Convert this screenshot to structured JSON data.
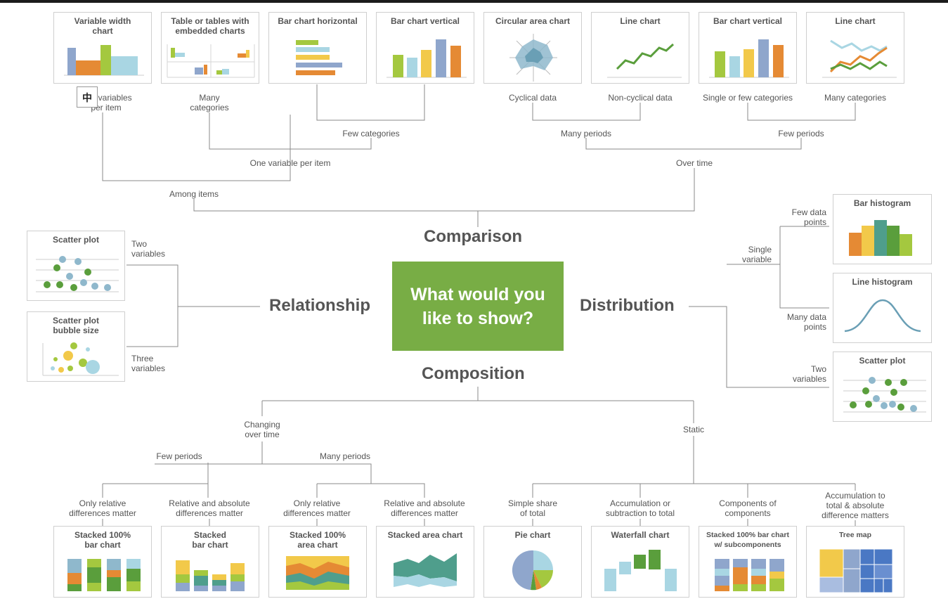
{
  "center": {
    "question": "What would you\nlike to show?"
  },
  "categories": {
    "comparison": "Comparison",
    "relationship": "Relationship",
    "distribution": "Distribution",
    "composition": "Composition"
  },
  "comparison": {
    "cards": [
      {
        "title": "Variable width\nchart"
      },
      {
        "title": "Table or tables with\nembedded charts"
      },
      {
        "title": "Bar chart horizontal"
      },
      {
        "title": "Bar chart vertical"
      },
      {
        "title": "Circular area chart"
      },
      {
        "title": "Line chart"
      },
      {
        "title": "Bar chart vertical"
      },
      {
        "title": "Line chart"
      }
    ],
    "labels": {
      "two_variables_per_item": "Two variables\nper item",
      "many_categories": "Many\ncategories",
      "cyclical_data": "Cyclical data",
      "non_cyclical_data": "Non-cyclical data",
      "single_or_few_categories": "Single or few categories",
      "many_categories_2": "Many categories",
      "few_categories": "Few categories",
      "many_periods": "Many periods",
      "few_periods": "Few periods",
      "one_variable_per_item": "One variable per item",
      "over_time": "Over time",
      "among_items": "Among items"
    }
  },
  "relationship": {
    "cards": [
      {
        "title": "Scatter plot"
      },
      {
        "title": "Scatter plot\nbubble size"
      }
    ],
    "labels": {
      "two_variables": "Two\nvariables",
      "three_variables": "Three\nvariables"
    }
  },
  "distribution": {
    "cards": [
      {
        "title": "Bar histogram"
      },
      {
        "title": "Line histogram"
      },
      {
        "title": "Scatter plot"
      }
    ],
    "labels": {
      "few_data_points": "Few data\npoints",
      "single_variable": "Single\nvariable",
      "many_data_points": "Many data\npoints",
      "two_variables": "Two\nvariables"
    }
  },
  "composition": {
    "cards": [
      {
        "title": "Stacked 100%\nbar chart"
      },
      {
        "title": "Stacked\nbar chart"
      },
      {
        "title": "Stacked 100%\narea chart"
      },
      {
        "title": "Stacked area chart"
      },
      {
        "title": "Pie chart"
      },
      {
        "title": "Waterfall chart"
      },
      {
        "title": "Stacked 100% bar chart\nw/ subcomponents"
      },
      {
        "title": "Tree map"
      }
    ],
    "labels": {
      "changing_over_time": "Changing\nover time",
      "static": "Static",
      "few_periods": "Few periods",
      "many_periods": "Many periods",
      "only_relative_1": "Only relative\ndifferences matter",
      "relative_absolute_1": "Relative and absolute\ndifferences matter",
      "only_relative_2": "Only relative\ndifferences matter",
      "relative_absolute_2": "Relative and absolute\ndifferences matter",
      "simple_share": "Simple share\nof total",
      "accumulation_subtraction": "Accumulation or\nsubtraction to total",
      "components_of_components": "Components of\ncomponents",
      "accumulation_absolute": "Accumulation to\ntotal & absolute\ndifference matters"
    }
  },
  "cursor": {
    "glyph": "中"
  },
  "colors": {
    "accent_green": "#78ad45",
    "blue": "#8fa6cc",
    "orange": "#e58a34",
    "lime": "#a4c83f",
    "lightblue": "#a9d6e3",
    "yellow": "#f2c94a",
    "teal": "#4f9e8c",
    "darkgreen": "#5a9e3c",
    "line_gray": "#8a8a8a"
  }
}
